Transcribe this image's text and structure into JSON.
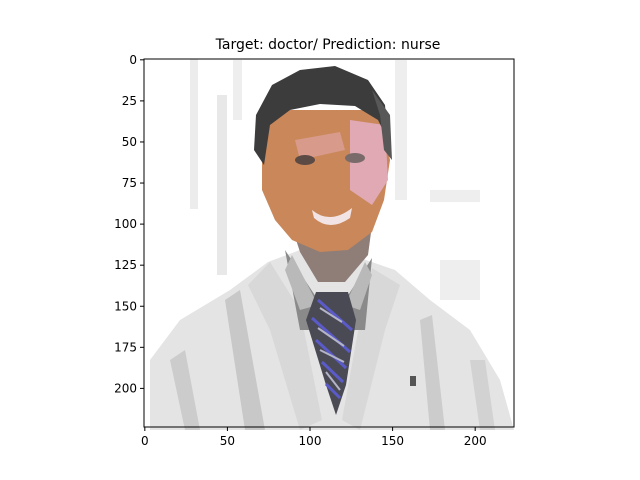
{
  "chart_data": {
    "type": "image",
    "title": "Target: doctor/ Prediction: nurse",
    "xlim": [
      -0.5,
      223.5
    ],
    "ylim": [
      223.5,
      -0.5
    ],
    "xticks": [
      0,
      50,
      100,
      150,
      200
    ],
    "yticks": [
      0,
      25,
      50,
      75,
      100,
      125,
      150,
      175,
      200
    ],
    "xlabel": "",
    "ylabel": "",
    "grid": false,
    "image_subject": "pixelated photo of a smiling man with short dark hair in a white coat and striped tie",
    "image_colors": {
      "background": "#ffffff",
      "coat": "#e4e4e4",
      "coat_shadow": "#c8c8c8",
      "hair": "#3c3c3c",
      "skin": "#c9875a",
      "skin_highlight": "#e0a9b4",
      "beard": "#8f7d78",
      "shirt": "#8a8a8a",
      "tie": "#4a4a55",
      "tie_stripe": "#5a5ac8"
    }
  }
}
